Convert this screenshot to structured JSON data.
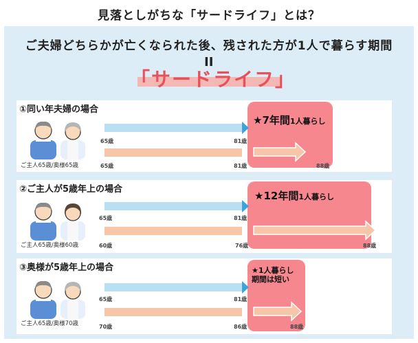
{
  "title": "見落としがちな「サードライフ」とは？",
  "subtitle": "ご夫婦どちらかが亡くなられた後、残された方が1人で暮らす期間",
  "equals": "II",
  "highlight": "「サードライフ」",
  "cases": [
    {
      "title": "①同い年夫婦の場合",
      "caption": "ご主人65歳/奥様65歳",
      "pink_big": "★7年間",
      "pink_small": "1人暮らし",
      "husband_start": "65歳",
      "husband_end": "81歳",
      "wife_start": "65歳",
      "wife_mid": "81歳",
      "wife_end": "88歳",
      "solo_years": 7
    },
    {
      "title": "②ご主人が5歳年上の場合",
      "caption": "ご主人65歳/奥様60歳",
      "pink_big": "★12年間",
      "pink_small": "1人暮らし",
      "husband_start": "65歳",
      "husband_end": "81歳",
      "wife_start": "60歳",
      "wife_mid": "76歳",
      "wife_end": "88歳",
      "solo_years": 12
    },
    {
      "title": "③奥様が5歳年上の場合",
      "caption": "ご主人65歳/奥様70歳",
      "pink_line1": "★1人暮らし",
      "pink_line2": "期間は短い",
      "husband_start": "65歳",
      "husband_end": "81歳",
      "wife_start": "70歳",
      "wife_mid": "86歳",
      "wife_end": "88歳"
    }
  ],
  "colors": {
    "husband_bar": "#b9dff2",
    "wife_bar": "#f7c6a8",
    "highlight_pink": "#f7878f",
    "title_red": "#e8505b"
  }
}
